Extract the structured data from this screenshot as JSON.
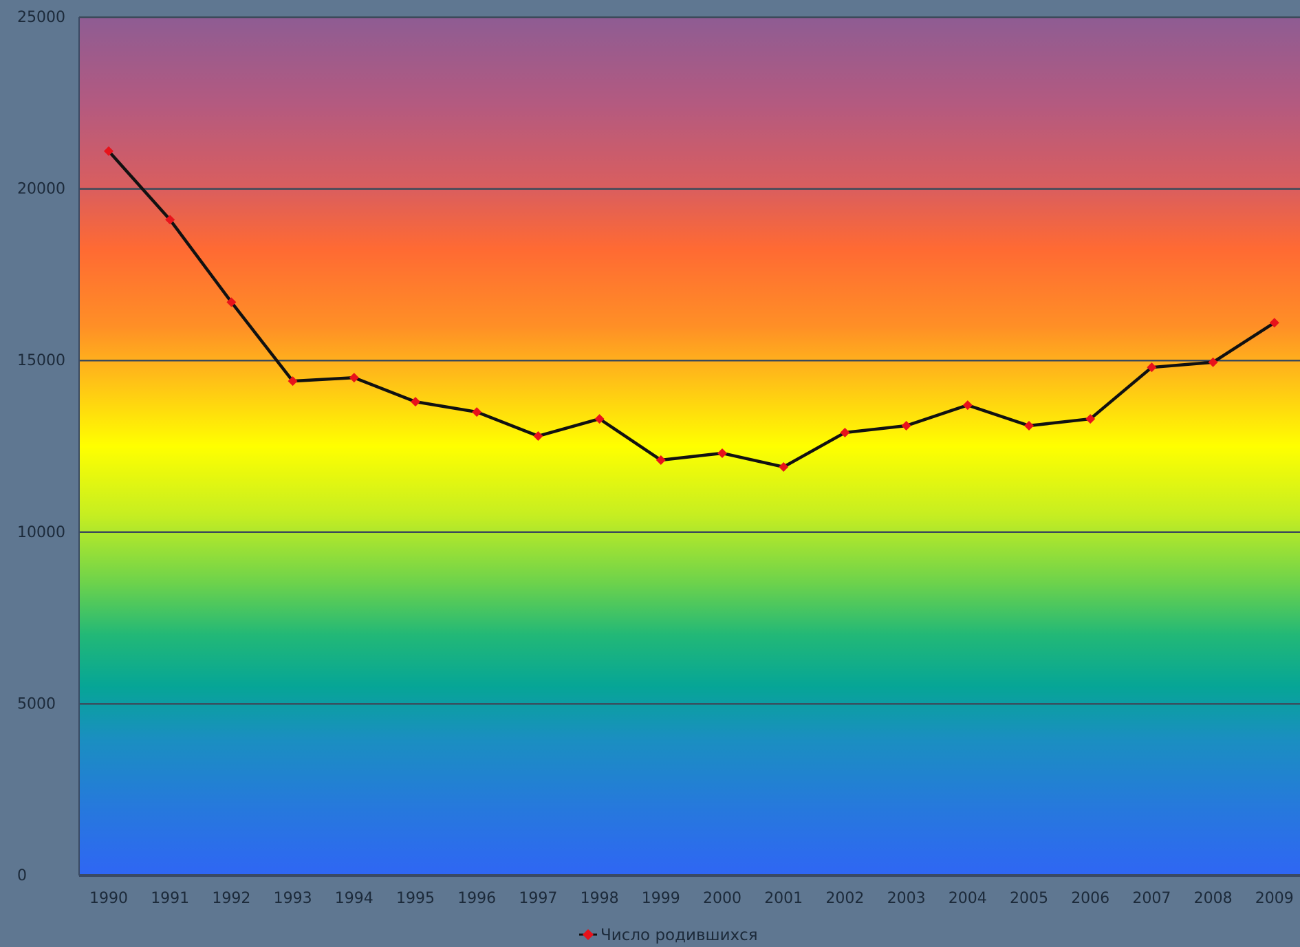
{
  "chart_data": {
    "type": "line",
    "title": "",
    "xlabel": "",
    "ylabel": "",
    "categories": [
      "1990",
      "1991",
      "1992",
      "1993",
      "1994",
      "1995",
      "1996",
      "1997",
      "1998",
      "1999",
      "2000",
      "2001",
      "2002",
      "2003",
      "2004",
      "2005",
      "2006",
      "2007",
      "2008",
      "2009"
    ],
    "series": [
      {
        "name": "Число родившихся",
        "values": [
          21100,
          19100,
          16700,
          14400,
          14500,
          13800,
          13500,
          12800,
          13300,
          12100,
          12300,
          11900,
          12900,
          13100,
          13700,
          13100,
          13300,
          14800,
          14950,
          16100
        ]
      }
    ],
    "ylim": [
      0,
      25000
    ],
    "yticks": [
      "0",
      "5000",
      "10000",
      "15000",
      "20000",
      "25000"
    ],
    "grid": true,
    "legend_position": "bottom",
    "colors": {
      "page_background": "#5f7791",
      "line": "#111111",
      "marker": "#e8121b",
      "gridline": "#3c4a5a",
      "tick_text": "#1c2a3a",
      "gradient": [
        "#8e5c93",
        "#d75c63",
        "#ff6a33",
        "#ffb21e",
        "#ffff00",
        "#a6e03a",
        "#3dbf6a",
        "#06a596",
        "#1a8fc0",
        "#2f66f4"
      ]
    }
  }
}
